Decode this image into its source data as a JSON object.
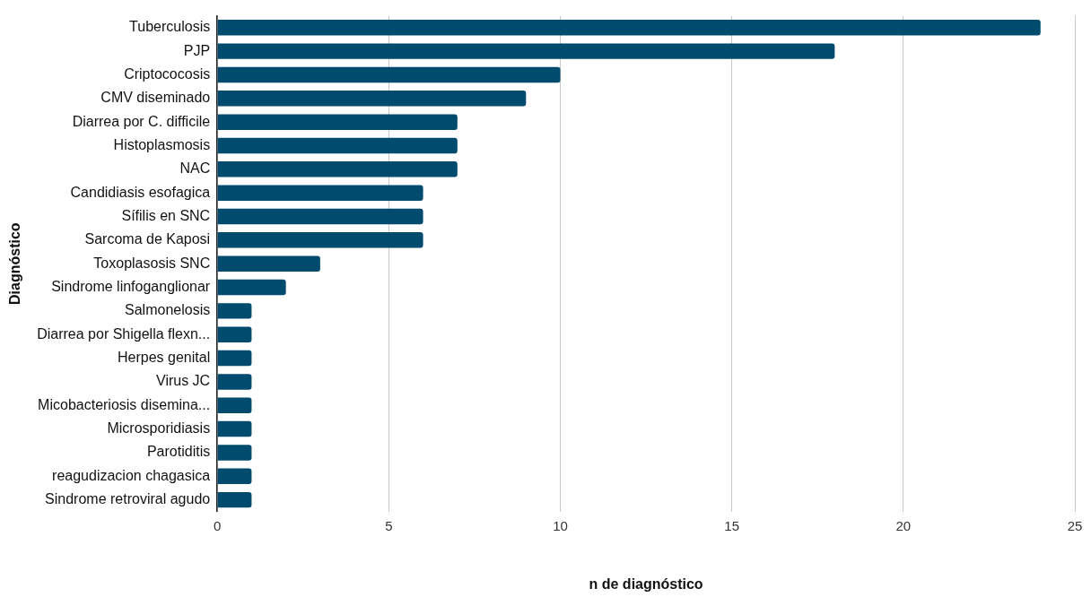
{
  "chart_data": {
    "type": "bar",
    "orientation": "horizontal",
    "xlabel": "n de diagnóstico",
    "ylabel": "Diagnóstico",
    "categories": [
      "Tuberculosis",
      "PJP",
      "Criptococosis",
      "CMV diseminado",
      "Diarrea por C. difficile",
      "Histoplasmosis",
      "NAC",
      "Candidiasis esofagica",
      "Sífilis en SNC",
      "Sarcoma de Kaposi",
      "Toxoplasosis SNC",
      "Sindrome linfoganglionar",
      "Salmonelosis",
      "Diarrea por Shigella flexn...",
      "Herpes genital",
      "Virus JC",
      "Micobacteriosis disemina...",
      "Microsporidiasis",
      "Parotiditis",
      "reagudizacion chagasica",
      "Sindrome retroviral agudo"
    ],
    "values": [
      24,
      18,
      10,
      9,
      7,
      7,
      7,
      6,
      6,
      6,
      3,
      2,
      1,
      1,
      1,
      1,
      1,
      1,
      1,
      1,
      1
    ],
    "color": "#004b6e",
    "xlim": [
      0,
      25
    ],
    "xticks": [
      0,
      5,
      10,
      15,
      20,
      25
    ],
    "grid": "x",
    "legend": false
  }
}
